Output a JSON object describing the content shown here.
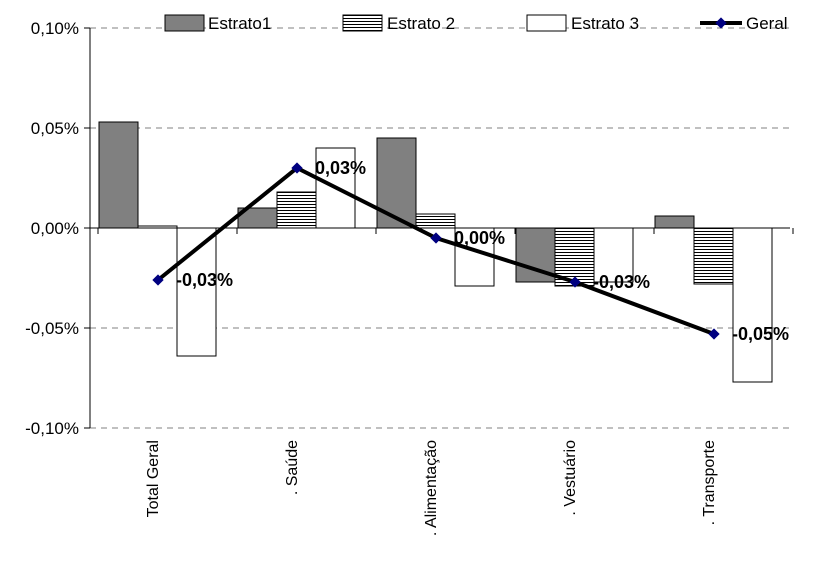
{
  "chart_data": {
    "type": "bar",
    "categories": [
      "Total Geral",
      ". Saúde",
      ". Alimentação",
      ". Vestuário",
      ". Transporte"
    ],
    "series": [
      {
        "name": "Estrato1",
        "type": "bar",
        "color": "#808080",
        "values": [
          0.053,
          0.01,
          0.045,
          -0.027,
          0.006
        ]
      },
      {
        "name": "Estrato 2",
        "type": "bar",
        "color": "#ffffff",
        "pattern": "horizontal-stripes",
        "values": [
          0.001,
          0.018,
          0.007,
          -0.029,
          -0.028
        ]
      },
      {
        "name": "Estrato 3",
        "type": "bar",
        "color": "#ffffff",
        "values": [
          -0.064,
          0.04,
          -0.029,
          -0.027,
          -0.077
        ]
      },
      {
        "name": "Geral",
        "type": "line",
        "color": "#000000",
        "marker_color": "#000080",
        "values": [
          -0.026,
          0.03,
          -0.005,
          -0.027,
          -0.053
        ]
      }
    ],
    "data_labels": [
      "-0,03%",
      "0,03%",
      "0,00%",
      "-0,03%",
      "-0,05%"
    ],
    "y_ticks": [
      0.1,
      0.05,
      0.0,
      -0.05,
      -0.1
    ],
    "y_tick_labels": [
      "0,10%",
      "0,05%",
      "0,00%",
      "-0,05%",
      "-0,10%"
    ],
    "ylim": [
      -0.1,
      0.1
    ],
    "grid": true,
    "legend_position": "top",
    "title": "",
    "xlabel": "",
    "ylabel": ""
  }
}
